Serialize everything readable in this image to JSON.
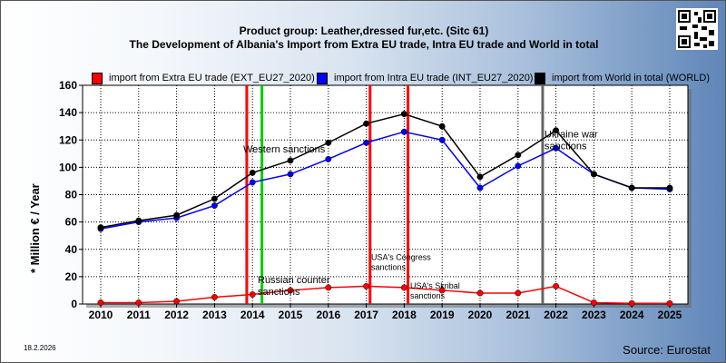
{
  "header": {
    "title_line1": "Product group: Leather,dressed fur,etc. (Sitc 61)",
    "title_line2": "The Development of Albania's Import from Extra EU trade, Intra EU trade and World in total"
  },
  "footer": {
    "date": "18.2.2026",
    "source": "Source: Eurostat"
  },
  "chart_data": {
    "type": "line",
    "ylabel": "* Million € / Year",
    "ylim": [
      0,
      160
    ],
    "yticks": [
      0,
      20,
      40,
      60,
      80,
      100,
      120,
      140,
      160
    ],
    "x": [
      "2010",
      "2011",
      "2012",
      "2013",
      "2014",
      "2015",
      "2016",
      "2017",
      "2018",
      "2019",
      "2020",
      "2021",
      "2022",
      "2023",
      "2024",
      "2025"
    ],
    "grid": true,
    "legend_position": "top",
    "series": [
      {
        "name": "import from Extra EU trade (EXT_EU27_2020)",
        "color": "#ff0000",
        "values": [
          1,
          1,
          2,
          5,
          7,
          10,
          12,
          13,
          12,
          10,
          8,
          8,
          13,
          1,
          0.5,
          0.5
        ]
      },
      {
        "name": "import from Intra EU trade (INT_EU27_2020)",
        "color": "#0000ff",
        "values": [
          55,
          60,
          63,
          72,
          89,
          95,
          106,
          118,
          126,
          120,
          85,
          101,
          114,
          95,
          85,
          84
        ]
      },
      {
        "name": "import from World in total (WORLD)",
        "color": "#000000",
        "values": [
          56,
          61,
          65,
          77,
          96,
          105,
          118,
          132,
          139,
          130,
          93,
          109,
          127,
          95,
          85,
          85
        ]
      }
    ],
    "events": [
      {
        "label": "Western sanctions",
        "x": 2014.25,
        "color": "#00cc00",
        "text_y": 115
      },
      {
        "label": "Russian counter sanctions",
        "x": 2013.85,
        "color": "#ff0000",
        "text_y": 18,
        "label2": "sanctions"
      },
      {
        "label": "USA's Congress sanctions",
        "x": 2017.1,
        "color": "#ff0000",
        "text_y": 35,
        "small": true
      },
      {
        "label": "USA's Skripal sanctions",
        "x": 2018.1,
        "color": "#ff0000",
        "text_y": 18,
        "small": true
      },
      {
        "label": "Ukraine war sanctions",
        "x": 2021.65,
        "color": "#666666",
        "text_y": 129
      }
    ]
  }
}
